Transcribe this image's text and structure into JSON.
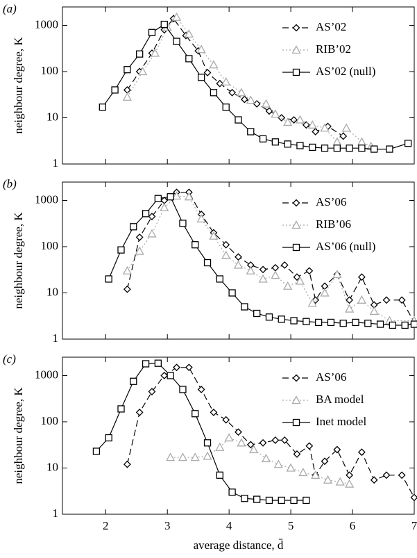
{
  "chart_data": [
    {
      "type": "line",
      "panel_label": "(a)",
      "ylabel": "neighbour degree, K",
      "y_log": true,
      "ylim": [
        1,
        2500
      ],
      "yticks": [
        1,
        10,
        100,
        1000
      ],
      "xlim": [
        1.3,
        7
      ],
      "xticks": [
        2,
        3,
        4,
        5,
        6,
        7
      ],
      "x_tick_labels": false,
      "legend": "upper right",
      "series": [
        {
          "name": "AS’02",
          "color": "#000000",
          "marker": "diamond",
          "dash": "dashed",
          "x": [
            2.35,
            2.55,
            2.75,
            2.95,
            3.1,
            3.3,
            3.5,
            3.65,
            3.85,
            4.05,
            4.25,
            4.45,
            4.65,
            4.85,
            5.05,
            5.25,
            5.4,
            5.6,
            5.85
          ],
          "values": [
            40,
            100,
            250,
            800,
            1400,
            600,
            280,
            95,
            55,
            35,
            25,
            20,
            14,
            10,
            9,
            7,
            5,
            6.5,
            4
          ]
        },
        {
          "name": "RIB’02",
          "color": "#aaaaaa",
          "marker": "triangle",
          "dash": "dotted",
          "x": [
            2.35,
            2.6,
            2.8,
            3.0,
            3.15,
            3.35,
            3.55,
            3.75,
            3.95,
            4.2,
            4.35,
            4.6,
            4.75,
            4.95,
            5.15,
            5.35,
            5.55,
            5.75,
            5.9,
            6.15,
            6.3
          ],
          "values": [
            28,
            100,
            250,
            900,
            1500,
            650,
            300,
            140,
            60,
            35,
            24,
            20,
            12,
            8,
            9,
            7,
            6,
            3,
            6,
            3,
            2.4
          ]
        },
        {
          "name": "AS’02 (null)",
          "color": "#000000",
          "marker": "square",
          "dash": "solid",
          "x": [
            1.95,
            2.15,
            2.35,
            2.55,
            2.75,
            2.95,
            3.15,
            3.35,
            3.55,
            3.75,
            3.95,
            4.15,
            4.35,
            4.55,
            4.75,
            4.95,
            5.15,
            5.35,
            5.55,
            5.75,
            5.95,
            6.15,
            6.35,
            6.6,
            6.9
          ],
          "values": [
            17,
            40,
            110,
            240,
            700,
            1050,
            450,
            190,
            75,
            35,
            17,
            9,
            5,
            3.5,
            3,
            2.7,
            2.5,
            2.3,
            2.2,
            2.2,
            2.2,
            2.2,
            2.1,
            2.1,
            2.8
          ]
        }
      ]
    },
    {
      "type": "line",
      "panel_label": "(b)",
      "ylabel": "neighbour degree, K",
      "y_log": true,
      "ylim": [
        1,
        2500
      ],
      "yticks": [
        1,
        10,
        100,
        1000
      ],
      "xlim": [
        1.3,
        7
      ],
      "xticks": [
        2,
        3,
        4,
        5,
        6,
        7
      ],
      "x_tick_labels": false,
      "legend": "upper right",
      "series": [
        {
          "name": "AS’06",
          "color": "#000000",
          "marker": "diamond",
          "dash": "dashed",
          "x": [
            2.35,
            2.55,
            2.75,
            2.95,
            3.15,
            3.35,
            3.55,
            3.75,
            3.95,
            4.15,
            4.35,
            4.55,
            4.75,
            4.9,
            5.1,
            5.3,
            5.4,
            5.55,
            5.75,
            5.95,
            6.15,
            6.35,
            6.55,
            6.8,
            7.0
          ],
          "values": [
            12,
            160,
            450,
            1000,
            1500,
            1500,
            500,
            200,
            110,
            60,
            40,
            32,
            35,
            40,
            22,
            30,
            7,
            14,
            25,
            7,
            22,
            5.5,
            7,
            7,
            2.3
          ]
        },
        {
          "name": "RIB’06",
          "color": "#aaaaaa",
          "marker": "triangle",
          "dash": "dotted",
          "x": [
            2.35,
            2.55,
            2.75,
            2.95,
            3.15,
            3.35,
            3.55,
            3.75,
            3.95,
            4.15,
            4.35,
            4.55,
            4.75,
            4.95,
            5.15,
            5.35,
            5.55,
            5.75,
            5.95,
            6.15,
            6.35,
            6.6,
            7.0
          ],
          "values": [
            30,
            80,
            190,
            700,
            1250,
            1200,
            400,
            170,
            65,
            40,
            30,
            20,
            24,
            14,
            18,
            6,
            10,
            25,
            4.5,
            7,
            4,
            2.5,
            2.5
          ]
        },
        {
          "name": "AS’06 (null)",
          "color": "#000000",
          "marker": "square",
          "dash": "solid",
          "x": [
            2.05,
            2.25,
            2.45,
            2.65,
            2.85,
            3.05,
            3.25,
            3.45,
            3.65,
            3.85,
            4.05,
            4.25,
            4.45,
            4.65,
            4.85,
            5.05,
            5.25,
            5.45,
            5.65,
            5.85,
            6.05,
            6.25,
            6.45,
            6.65,
            6.85,
            7.0
          ],
          "values": [
            20,
            85,
            270,
            520,
            1100,
            1200,
            320,
            110,
            45,
            20,
            10,
            5,
            3.6,
            3,
            2.7,
            2.5,
            2.4,
            2.3,
            2.3,
            2.2,
            2.3,
            2.2,
            2.1,
            2,
            2,
            2.1
          ]
        }
      ]
    },
    {
      "type": "line",
      "panel_label": "(c)",
      "ylabel": "neighbour degree, K",
      "xlabel": "average distance, d̄",
      "y_log": true,
      "ylim": [
        1,
        2500
      ],
      "yticks": [
        1,
        10,
        100,
        1000
      ],
      "xlim": [
        1.3,
        7
      ],
      "xticks": [
        2,
        3,
        4,
        5,
        6,
        7
      ],
      "x_tick_labels": true,
      "legend": "upper right",
      "series": [
        {
          "name": "AS’06",
          "color": "#000000",
          "marker": "diamond",
          "dash": "dashed",
          "x": [
            2.35,
            2.55,
            2.75,
            2.95,
            3.15,
            3.35,
            3.55,
            3.75,
            3.95,
            4.15,
            4.35,
            4.55,
            4.75,
            4.9,
            5.1,
            5.3,
            5.4,
            5.55,
            5.75,
            5.95,
            6.15,
            6.35,
            6.55,
            6.8,
            7.0
          ],
          "values": [
            12,
            160,
            450,
            1000,
            1500,
            1500,
            500,
            160,
            110,
            60,
            32,
            35,
            40,
            40,
            20,
            30,
            7,
            14,
            25,
            7,
            22,
            5.5,
            7,
            7,
            2.3
          ]
        },
        {
          "name": "BA model",
          "color": "#aaaaaa",
          "marker": "triangle",
          "dash": "dotted",
          "x": [
            3.05,
            3.25,
            3.45,
            3.65,
            3.85,
            4.0,
            4.2,
            4.4,
            4.6,
            4.8,
            5.0,
            5.2,
            5.4,
            5.6,
            5.8,
            5.95
          ],
          "values": [
            17,
            17,
            17,
            18,
            28,
            45,
            35,
            25,
            16,
            12,
            10,
            8,
            7,
            5.5,
            5,
            4.5
          ]
        },
        {
          "name": "Inet model",
          "color": "#000000",
          "marker": "square",
          "dash": "solid",
          "x": [
            1.85,
            2.05,
            2.25,
            2.45,
            2.65,
            2.85,
            3.05,
            3.25,
            3.45,
            3.65,
            3.85,
            4.05,
            4.25,
            4.45,
            4.65,
            4.85,
            5.05,
            5.25
          ],
          "values": [
            23,
            45,
            190,
            750,
            1800,
            1850,
            1000,
            500,
            150,
            35,
            7,
            3,
            2.2,
            2.1,
            2,
            2,
            2,
            2
          ]
        }
      ]
    }
  ]
}
